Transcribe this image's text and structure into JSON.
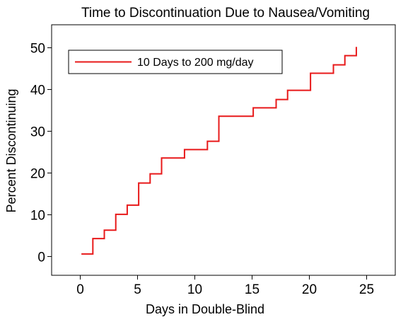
{
  "chart_data": {
    "type": "line",
    "title": "Time to Discontinuation Due to Nausea/Vomiting",
    "xlabel": "Days in Double-Blind",
    "ylabel": "Percent Discontinuing",
    "xlim": [
      -2.5,
      27.5
    ],
    "ylim": [
      -4.5,
      55.5
    ],
    "xticks": [
      "0",
      "5",
      "10",
      "15",
      "20",
      "25"
    ],
    "xtick_values": [
      0,
      5,
      10,
      15,
      20,
      25
    ],
    "yticks": [
      "0",
      "10",
      "20",
      "30",
      "40",
      "50"
    ],
    "ytick_values": [
      0,
      10,
      20,
      30,
      40,
      50
    ],
    "legend_position": "top-left",
    "series": [
      {
        "name": "10 Days to 200 mg/day",
        "color": "#e8191a",
        "step": true,
        "x": [
          0.1,
          1.1,
          2.1,
          3.1,
          4.1,
          5.1,
          6.1,
          7.1,
          9.1,
          11.1,
          12.1,
          15.1,
          17.1,
          18.1,
          20.1,
          22.1,
          23.1,
          24.1
        ],
        "y": [
          0.6,
          4.3,
          6.3,
          10.1,
          12.3,
          17.6,
          19.8,
          23.6,
          25.6,
          27.6,
          33.6,
          35.6,
          37.6,
          39.8,
          43.9,
          45.9,
          48.1,
          50.2
        ]
      }
    ]
  }
}
